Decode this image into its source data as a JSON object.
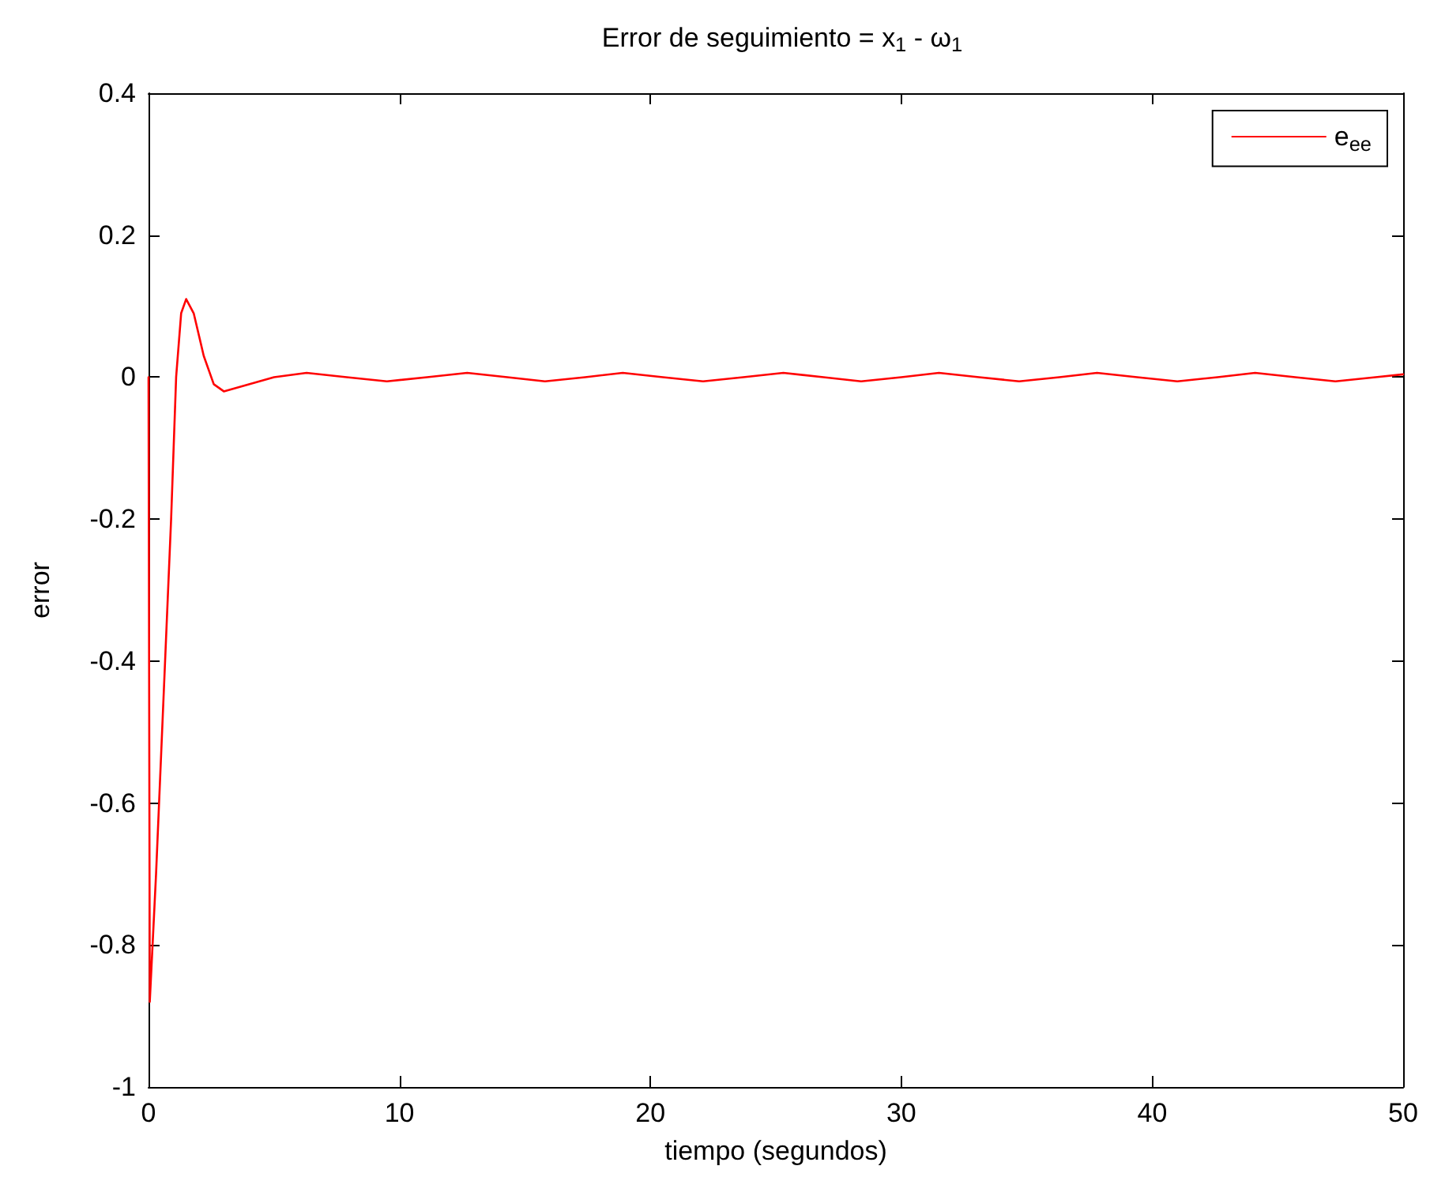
{
  "chart_data": {
    "type": "line",
    "title": "Error de seguimiento = x$_{1}$ - ω$_{1}$",
    "xlabel": "tiempo (segundos)",
    "ylabel": "error",
    "xlim": [
      0,
      50
    ],
    "xticks": [
      0,
      10,
      20,
      30,
      40,
      50
    ],
    "ylim": [
      -1,
      0.4
    ],
    "yticks": [
      -1,
      -0.8,
      -0.6,
      -0.4,
      -0.2,
      0,
      0.2,
      0.4
    ],
    "grid": false,
    "legend": "top right",
    "marker": "none",
    "line_style": "solid",
    "series": [
      {
        "name": "e$_{ee}$",
        "color": "#ff0000",
        "x": [
          0,
          0.05,
          0.3,
          0.6,
          0.9,
          1.1,
          1.3,
          1.5,
          1.8,
          2.2,
          2.6,
          3.0,
          4,
          5,
          6.3,
          7.9,
          9.5,
          11.1,
          12.7,
          14.3,
          15.8,
          17.4,
          18.9,
          20.5,
          22.1,
          23.7,
          25.3,
          26.9,
          28.4,
          30,
          31.5,
          33.1,
          34.7,
          36.3,
          37.8,
          39.4,
          41,
          42.6,
          44.1,
          45.7,
          47.3,
          48.9,
          50
        ],
        "values": [
          0,
          -0.88,
          -0.7,
          -0.45,
          -0.2,
          0,
          0.09,
          0.11,
          0.09,
          0.03,
          -0.01,
          -0.02,
          -0.01,
          0,
          0.006,
          0,
          -0.006,
          0,
          0.006,
          0,
          -0.006,
          0,
          0.006,
          0,
          -0.006,
          0,
          0.006,
          0,
          -0.006,
          0,
          0.006,
          0,
          -0.006,
          0,
          0.006,
          0,
          -0.006,
          0,
          0.006,
          0,
          -0.006,
          0,
          0.004
        ]
      }
    ]
  }
}
